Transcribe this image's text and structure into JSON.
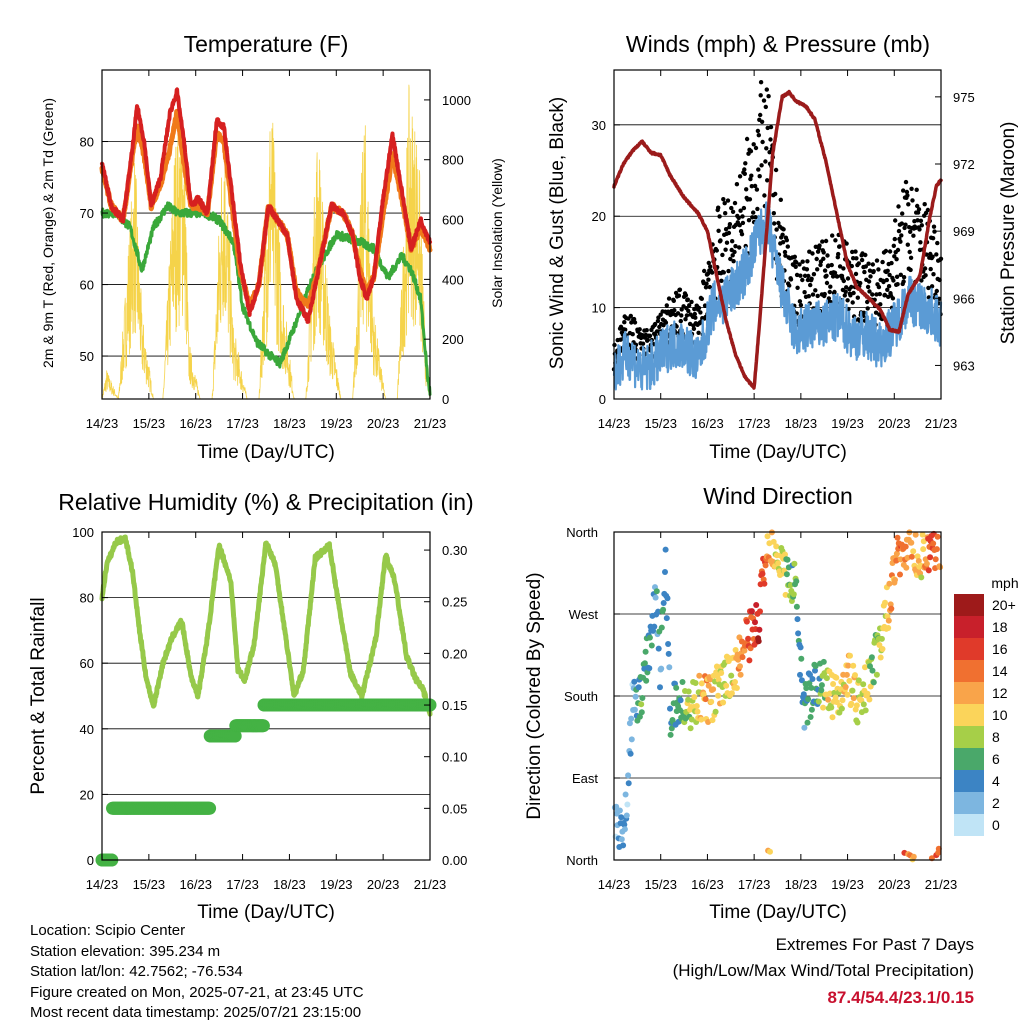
{
  "colors": {
    "temp_2m": "#d62020",
    "temp_9m": "#f07a1a",
    "dewpoint": "#3aa83a",
    "solar": "#f5d34a",
    "wind": "#5b9bd5",
    "gust": "#000000",
    "pressure": "#9b1b1b",
    "rh": "#96c94a",
    "precip": "#44b244",
    "extremes": "#c8102e"
  },
  "footer": {
    "location": "Location: Scipio Center",
    "elevation": "Station elevation: 395.234 m",
    "latlon": "Station lat/lon: 42.7562; -76.534",
    "created": "Figure created on Mon, 2025-07-21, at 23:45 UTC",
    "recent": "Most recent data timestamp: 2025/07/21 23:15:00"
  },
  "extremes": {
    "title": "Extremes For Past 7 Days",
    "subtitle": "(High/Low/Max Wind/Total Precipitation)",
    "values": "87.4/54.4/23.1/0.15"
  },
  "chart_data": [
    {
      "type": "line",
      "title": "Temperature (F)",
      "xlabel": "Time (Day/UTC)",
      "ylabel": "2m & 9m T (Red, Orange) & 2m Td (Green)",
      "y2label": "Solar Insolation (Yellow)",
      "xticks": [
        "14/23",
        "15/23",
        "16/23",
        "17/23",
        "18/23",
        "19/23",
        "20/23",
        "21/23"
      ],
      "xlim": [
        0,
        7
      ],
      "ylim": [
        44,
        90
      ],
      "yticks": [
        50,
        60,
        70,
        80
      ],
      "y2lim": [
        0,
        1100
      ],
      "y2ticks": [
        0,
        200,
        400,
        600,
        800,
        1000
      ],
      "grid": true,
      "series": [
        {
          "role": "2m T",
          "axis": "left",
          "color_key": "temp_2m",
          "x": [
            0,
            0.2,
            0.45,
            0.65,
            0.75,
            0.9,
            1.05,
            1.25,
            1.45,
            1.6,
            1.75,
            1.9,
            2.05,
            2.25,
            2.45,
            2.6,
            2.75,
            2.95,
            3.15,
            3.35,
            3.55,
            3.75,
            3.95,
            4.15,
            4.4,
            4.65,
            4.9,
            5.15,
            5.35,
            5.5,
            5.65,
            5.8,
            6.0,
            6.2,
            6.4,
            6.6,
            6.8,
            7.0
          ],
          "y": [
            77,
            71,
            69,
            79,
            85,
            80,
            71,
            75,
            84,
            87,
            80,
            71,
            72,
            70,
            83,
            82,
            74,
            63,
            56,
            60,
            71,
            69,
            67,
            58,
            55,
            63,
            71,
            70,
            67,
            61,
            58,
            61,
            72,
            81,
            73,
            65,
            69,
            66
          ]
        },
        {
          "role": "9m T",
          "axis": "left",
          "color_key": "temp_9m",
          "x": [
            0,
            0.2,
            0.45,
            0.65,
            0.75,
            0.9,
            1.05,
            1.25,
            1.45,
            1.6,
            1.75,
            1.9,
            2.05,
            2.25,
            2.45,
            2.6,
            2.75,
            2.95,
            3.15,
            3.35,
            3.55,
            3.75,
            3.95,
            4.15,
            4.4,
            4.65,
            4.9,
            5.15,
            5.35,
            5.5,
            5.65,
            5.8,
            6.0,
            6.2,
            6.4,
            6.6,
            6.8,
            7.0
          ],
          "y": [
            76,
            71,
            69,
            78,
            82,
            78,
            71,
            74,
            79,
            84,
            77,
            71,
            71,
            70,
            81,
            80,
            72,
            62,
            57,
            60,
            71,
            69,
            67,
            59,
            57,
            63,
            71,
            70,
            67,
            62,
            59,
            61,
            70,
            78,
            72,
            65,
            68,
            65
          ]
        },
        {
          "role": "2m Td",
          "axis": "left",
          "color_key": "dewpoint",
          "x": [
            0,
            0.3,
            0.6,
            0.85,
            1.1,
            1.4,
            1.6,
            1.9,
            2.2,
            2.5,
            2.8,
            3.0,
            3.3,
            3.6,
            3.8,
            4.1,
            4.5,
            5.0,
            5.5,
            5.8,
            6.1,
            6.4,
            6.6,
            6.8,
            6.95,
            7.0
          ],
          "y": [
            70,
            70,
            68,
            62,
            68,
            71,
            70,
            70,
            70,
            69,
            66,
            57,
            52,
            50,
            49,
            54,
            61,
            67,
            66,
            65,
            61,
            64,
            62,
            58,
            47,
            45
          ]
        },
        {
          "role": "Solar",
          "axis": "right",
          "color_key": "solar",
          "x": [
            0,
            0.1,
            0.35,
            0.55,
            0.7,
            0.85,
            1.1,
            1.3,
            1.55,
            1.75,
            1.85,
            2.1,
            2.35,
            2.6,
            2.8,
            3.1,
            3.35,
            3.6,
            3.85,
            4.1,
            4.35,
            4.6,
            4.85,
            5.1,
            5.35,
            5.6,
            5.8,
            6.05,
            6.3,
            6.55,
            6.75,
            6.9,
            7.0
          ],
          "y": [
            0,
            100,
            0,
            500,
            850,
            300,
            0,
            0,
            880,
            1000,
            200,
            0,
            0,
            1020,
            250,
            0,
            0,
            1060,
            400,
            0,
            0,
            950,
            300,
            0,
            0,
            1000,
            300,
            0,
            0,
            1050,
            900,
            200,
            0
          ]
        }
      ]
    },
    {
      "type": "line",
      "title": "Winds (mph) & Pressure (mb)",
      "xlabel": "Time (Day/UTC)",
      "ylabel": "Sonic Wind & Gust (Blue, Black)",
      "y2label": "Station Pressure (Maroon)",
      "xticks": [
        "14/23",
        "15/23",
        "16/23",
        "17/23",
        "18/23",
        "19/23",
        "20/23",
        "21/23"
      ],
      "xlim": [
        0,
        7
      ],
      "ylim": [
        0,
        36
      ],
      "yticks": [
        0,
        10,
        20,
        30
      ],
      "y2lim": [
        961.5,
        976.2
      ],
      "y2ticks": [
        963,
        966,
        969,
        972,
        975
      ],
      "grid": true,
      "series": [
        {
          "role": "Wind",
          "axis": "left",
          "color_key": "wind",
          "x": [
            0,
            0.3,
            0.6,
            0.9,
            1.2,
            1.5,
            1.8,
            2.1,
            2.4,
            2.7,
            2.9,
            3.1,
            3.3,
            3.5,
            3.7,
            3.9,
            4.2,
            4.5,
            4.8,
            5.1,
            5.4,
            5.7,
            6.0,
            6.3,
            6.6,
            6.9,
            7.0
          ],
          "y": [
            3,
            5,
            3,
            4,
            6,
            6,
            4,
            10,
            11,
            13,
            15,
            18,
            19,
            14,
            10,
            7,
            8,
            8,
            9,
            7,
            7,
            6,
            8,
            11,
            10,
            9,
            8
          ]
        },
        {
          "role": "Gust",
          "axis": "left",
          "color_key": "gust",
          "x": [
            0,
            0.3,
            0.6,
            0.9,
            1.2,
            1.5,
            1.8,
            2.1,
            2.4,
            2.7,
            2.9,
            3.1,
            3.3,
            3.5,
            3.7,
            3.9,
            4.2,
            4.5,
            4.8,
            5.1,
            5.4,
            5.7,
            6.0,
            6.3,
            6.6,
            6.9,
            7.0
          ],
          "y": [
            5,
            8,
            6,
            7,
            9,
            10,
            8,
            16,
            18,
            20,
            24,
            28,
            27,
            19,
            15,
            12,
            13,
            14,
            15,
            13,
            13,
            12,
            16,
            20,
            18,
            16,
            14
          ]
        },
        {
          "role": "Pressure",
          "axis": "right",
          "color_key": "pressure",
          "x": [
            0,
            0.2,
            0.4,
            0.6,
            0.8,
            1.0,
            1.2,
            1.5,
            1.8,
            2.0,
            2.2,
            2.4,
            2.6,
            2.8,
            3.0,
            3.1,
            3.25,
            3.4,
            3.6,
            3.75,
            3.9,
            4.1,
            4.3,
            4.55,
            4.8,
            5.0,
            5.2,
            5.45,
            5.7,
            5.9,
            6.1,
            6.3,
            6.55,
            6.75,
            6.9,
            7.0
          ],
          "y": [
            971,
            972,
            972.6,
            973,
            972.5,
            972.4,
            971.5,
            970.5,
            969.8,
            969,
            967,
            965,
            963.5,
            962.5,
            962,
            964.5,
            968.5,
            972.5,
            975,
            975.2,
            974.8,
            974.6,
            974,
            972,
            969.5,
            967.5,
            966.5,
            966,
            965.5,
            964.6,
            964.5,
            966.2,
            967,
            969.5,
            971,
            971.3
          ]
        }
      ]
    },
    {
      "type": "line",
      "title": "Relative Humidity (%) & Precipitation (in)",
      "xlabel": "Time (Day/UTC)",
      "ylabel": "Percent & Total Rainfall",
      "xticks": [
        "14/23",
        "15/23",
        "16/23",
        "17/23",
        "18/23",
        "19/23",
        "20/23",
        "21/23"
      ],
      "xlim": [
        0,
        7
      ],
      "ylim": [
        0,
        100
      ],
      "yticks": [
        0,
        20,
        40,
        60,
        80,
        100
      ],
      "y2lim": [
        0,
        0.3175
      ],
      "y2ticks": [
        "0.00",
        "0.05",
        "0.10",
        "0.15",
        "0.20",
        "0.25",
        "0.30"
      ],
      "grid": true,
      "series": [
        {
          "role": "RH",
          "axis": "left",
          "color_key": "rh",
          "x": [
            0,
            0.1,
            0.3,
            0.5,
            0.65,
            0.8,
            0.95,
            1.1,
            1.3,
            1.5,
            1.7,
            1.9,
            2.05,
            2.25,
            2.5,
            2.75,
            2.9,
            3.05,
            3.25,
            3.5,
            3.7,
            3.9,
            4.1,
            4.3,
            4.55,
            4.85,
            5.05,
            5.3,
            5.55,
            5.85,
            6.05,
            6.25,
            6.5,
            6.7,
            6.85,
            7.0
          ],
          "y": [
            80,
            90,
            97,
            98,
            88,
            70,
            55,
            47,
            60,
            68,
            73,
            56,
            50,
            68,
            96,
            85,
            58,
            55,
            66,
            97,
            90,
            70,
            50,
            58,
            92,
            96,
            78,
            57,
            50,
            68,
            93,
            85,
            62,
            55,
            52,
            45
          ]
        },
        {
          "role": "Precip",
          "axis": "right",
          "color_key": "precip",
          "step": true,
          "x": [
            0,
            0.22,
            0.22,
            2.3,
            2.3,
            2.85,
            2.85,
            3.45,
            3.45,
            7.0
          ],
          "y": [
            0,
            0,
            0.05,
            0.05,
            0.12,
            0.12,
            0.13,
            0.13,
            0.15,
            0.15
          ]
        }
      ]
    },
    {
      "type": "scatter",
      "title": "Wind Direction",
      "xlabel": "Time (Day/UTC)",
      "ylabel": "Direction (Colored By Speed)",
      "xticks": [
        "14/23",
        "15/23",
        "16/23",
        "17/23",
        "18/23",
        "19/23",
        "20/23",
        "21/23"
      ],
      "xlim": [
        0,
        7
      ],
      "ylim": [
        0,
        360
      ],
      "yticks": [
        "North",
        "East",
        "South",
        "West",
        "North"
      ],
      "legend": {
        "title": "mph",
        "labels": [
          "20+",
          "18",
          "16",
          "14",
          "12",
          "10",
          "8",
          "6",
          "4",
          "2",
          "0"
        ],
        "colors": [
          "#9e1a1a",
          "#c8202b",
          "#e03a2a",
          "#f07030",
          "#f9a44a",
          "#fbd45a",
          "#a6cf48",
          "#4aa86a",
          "#3c84c4",
          "#7db6e0",
          "#c0e4f6"
        ],
        "placement": "right"
      },
      "series": [
        {
          "role": "Direction",
          "x": [
            0.05,
            0.2,
            0.4,
            0.55,
            0.8,
            0.9,
            1.0,
            1.1,
            1.2,
            1.4,
            1.6,
            1.8,
            2.0,
            2.2,
            2.4,
            2.6,
            2.8,
            2.95,
            3.1,
            3.3,
            3.5,
            3.7,
            3.9,
            4.05,
            4.2,
            4.4,
            4.6,
            4.8,
            5.0,
            5.2,
            5.4,
            5.6,
            5.8,
            6.0,
            6.2,
            6.4,
            6.6,
            6.8,
            6.95
          ],
          "y": [
            40,
            15,
            170,
            175,
            250,
            300,
            200,
            340,
            160,
            175,
            165,
            180,
            175,
            185,
            195,
            210,
            235,
            250,
            265,
            355,
            340,
            310,
            300,
            170,
            180,
            200,
            180,
            185,
            205,
            175,
            190,
            220,
            260,
            320,
            345,
            340,
            330,
            335,
            345
          ],
          "speed": [
            2,
            3,
            2,
            6,
            4,
            3,
            4,
            5,
            4,
            6,
            8,
            10,
            12,
            10,
            9,
            11,
            14,
            16,
            18,
            12,
            10,
            8,
            6,
            4,
            5,
            6,
            10,
            8,
            12,
            10,
            9,
            8,
            10,
            12,
            14,
            12,
            10,
            16,
            14
          ]
        }
      ]
    }
  ]
}
